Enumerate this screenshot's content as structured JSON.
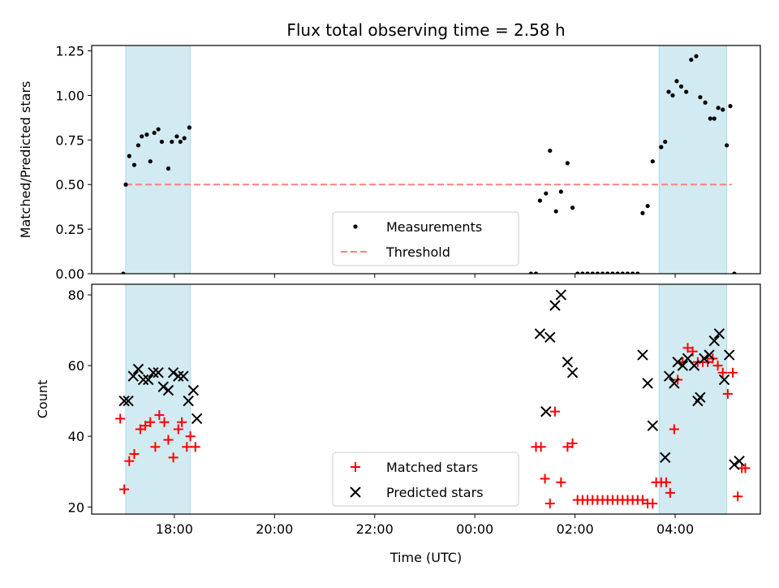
{
  "chart_data": {
    "title": "Flux total observing time = 2.58 h",
    "type": "scatter",
    "x_axis": {
      "label": "Time (UTC)",
      "unit": "hours since 00:00 UTC of first day",
      "ticks": [
        {
          "value": 18,
          "label": "18:00"
        },
        {
          "value": 20,
          "label": "20:00"
        },
        {
          "value": 22,
          "label": "22:00"
        },
        {
          "value": 24,
          "label": "00:00"
        },
        {
          "value": 26,
          "label": "02:00"
        },
        {
          "value": 28,
          "label": "04:00"
        }
      ],
      "range": [
        16.35,
        29.7
      ]
    },
    "shaded_intervals": [
      [
        17.03,
        18.32
      ],
      [
        27.68,
        29.03
      ]
    ],
    "shade_color": "#add8e6",
    "panels": [
      {
        "ylabel": "Matched/Predicted stars",
        "ylim": [
          0,
          1.28
        ],
        "yticks": [
          0,
          0.25,
          0.5,
          0.75,
          1.0,
          1.25
        ],
        "ytick_labels": [
          "0.00",
          "0.25",
          "0.50",
          "0.75",
          "1.00",
          "1.25"
        ],
        "threshold": {
          "name": "Threshold",
          "value": 0.5,
          "x_range": [
            17.03,
            29.13
          ],
          "color": "#ff7f7f"
        },
        "legend": {
          "position": "lower center",
          "entries": [
            "Measurements",
            "Threshold"
          ]
        },
        "series": [
          {
            "name": "Measurements",
            "marker": "dot",
            "color": "#000000",
            "points": [
              [
                16.98,
                0.0
              ],
              [
                17.03,
                0.5
              ],
              [
                17.1,
                0.66
              ],
              [
                17.2,
                0.61
              ],
              [
                17.28,
                0.72
              ],
              [
                17.35,
                0.77
              ],
              [
                17.45,
                0.78
              ],
              [
                17.52,
                0.63
              ],
              [
                17.6,
                0.79
              ],
              [
                17.68,
                0.81
              ],
              [
                17.75,
                0.74
              ],
              [
                17.88,
                0.59
              ],
              [
                17.95,
                0.74
              ],
              [
                18.05,
                0.77
              ],
              [
                18.12,
                0.74
              ],
              [
                18.2,
                0.76
              ],
              [
                18.3,
                0.82
              ],
              [
                25.12,
                0.0
              ],
              [
                25.22,
                0.0
              ],
              [
                25.3,
                0.41
              ],
              [
                25.42,
                0.45
              ],
              [
                25.5,
                0.69
              ],
              [
                25.62,
                0.35
              ],
              [
                25.72,
                0.46
              ],
              [
                25.85,
                0.62
              ],
              [
                25.95,
                0.37
              ],
              [
                26.05,
                0.0
              ],
              [
                26.15,
                0.0
              ],
              [
                26.25,
                0.0
              ],
              [
                26.35,
                0.0
              ],
              [
                26.45,
                0.0
              ],
              [
                26.55,
                0.0
              ],
              [
                26.65,
                0.0
              ],
              [
                26.75,
                0.0
              ],
              [
                26.85,
                0.0
              ],
              [
                26.95,
                0.0
              ],
              [
                27.05,
                0.0
              ],
              [
                27.15,
                0.0
              ],
              [
                27.25,
                0.0
              ],
              [
                27.35,
                0.34
              ],
              [
                27.45,
                0.38
              ],
              [
                27.55,
                0.63
              ],
              [
                27.72,
                0.71
              ],
              [
                27.8,
                0.74
              ],
              [
                27.87,
                1.02
              ],
              [
                27.95,
                1.0
              ],
              [
                28.03,
                1.08
              ],
              [
                28.12,
                1.05
              ],
              [
                28.22,
                1.02
              ],
              [
                28.32,
                1.2
              ],
              [
                28.42,
                1.22
              ],
              [
                28.5,
                0.99
              ],
              [
                28.6,
                0.96
              ],
              [
                28.7,
                0.87
              ],
              [
                28.78,
                0.87
              ],
              [
                28.86,
                0.93
              ],
              [
                28.95,
                0.92
              ],
              [
                29.03,
                0.72
              ],
              [
                29.1,
                0.94
              ],
              [
                29.18,
                0.0
              ]
            ]
          }
        ]
      },
      {
        "ylabel": "Count",
        "ylim": [
          18,
          83
        ],
        "yticks": [
          20,
          40,
          60,
          80
        ],
        "ytick_labels": [
          "20",
          "40",
          "60",
          "80"
        ],
        "legend": {
          "position": "lower center",
          "entries": [
            "Matched stars",
            "Predicted stars"
          ]
        },
        "series": [
          {
            "name": "Matched stars",
            "marker": "plus",
            "color": "#ff0000",
            "points": [
              [
                16.92,
                45
              ],
              [
                17.0,
                25
              ],
              [
                17.1,
                33
              ],
              [
                17.2,
                35
              ],
              [
                17.32,
                42
              ],
              [
                17.42,
                43
              ],
              [
                17.52,
                44
              ],
              [
                17.62,
                37
              ],
              [
                17.7,
                46
              ],
              [
                17.8,
                44
              ],
              [
                17.88,
                39
              ],
              [
                17.98,
                34
              ],
              [
                18.08,
                42
              ],
              [
                18.15,
                44
              ],
              [
                18.25,
                37
              ],
              [
                18.32,
                40
              ],
              [
                18.42,
                37
              ],
              [
                25.22,
                37
              ],
              [
                25.32,
                37
              ],
              [
                25.4,
                28
              ],
              [
                25.5,
                21
              ],
              [
                25.6,
                47
              ],
              [
                25.72,
                27
              ],
              [
                25.85,
                37
              ],
              [
                25.95,
                38
              ],
              [
                26.05,
                22
              ],
              [
                26.15,
                22
              ],
              [
                26.25,
                22
              ],
              [
                26.35,
                22
              ],
              [
                26.45,
                22
              ],
              [
                26.55,
                22
              ],
              [
                26.65,
                22
              ],
              [
                26.75,
                22
              ],
              [
                26.85,
                22
              ],
              [
                26.95,
                22
              ],
              [
                27.05,
                22
              ],
              [
                27.15,
                22
              ],
              [
                27.25,
                22
              ],
              [
                27.35,
                22
              ],
              [
                27.45,
                21
              ],
              [
                27.55,
                21
              ],
              [
                27.62,
                27
              ],
              [
                27.72,
                27
              ],
              [
                27.82,
                27
              ],
              [
                27.9,
                24
              ],
              [
                27.98,
                42
              ],
              [
                28.05,
                56
              ],
              [
                28.15,
                61
              ],
              [
                28.25,
                65
              ],
              [
                28.35,
                64
              ],
              [
                28.45,
                61
              ],
              [
                28.55,
                61
              ],
              [
                28.65,
                61
              ],
              [
                28.75,
                62
              ],
              [
                28.85,
                60
              ],
              [
                28.95,
                58
              ],
              [
                29.05,
                52
              ],
              [
                29.15,
                58
              ],
              [
                29.25,
                23
              ],
              [
                29.33,
                31
              ],
              [
                29.4,
                31
              ]
            ]
          },
          {
            "name": "Predicted stars",
            "marker": "x",
            "color": "#000000",
            "points": [
              [
                17.0,
                50
              ],
              [
                17.08,
                50
              ],
              [
                17.18,
                57
              ],
              [
                17.28,
                59
              ],
              [
                17.38,
                56
              ],
              [
                17.48,
                56
              ],
              [
                17.58,
                58
              ],
              [
                17.68,
                58
              ],
              [
                17.78,
                54
              ],
              [
                17.88,
                53
              ],
              [
                17.98,
                58
              ],
              [
                18.08,
                57
              ],
              [
                18.18,
                57
              ],
              [
                18.28,
                50
              ],
              [
                18.38,
                53
              ],
              [
                18.45,
                45
              ],
              [
                25.3,
                69
              ],
              [
                25.42,
                47
              ],
              [
                25.5,
                68
              ],
              [
                25.6,
                77
              ],
              [
                25.72,
                80
              ],
              [
                25.85,
                61
              ],
              [
                25.95,
                58
              ],
              [
                27.35,
                63
              ],
              [
                27.45,
                55
              ],
              [
                27.55,
                43
              ],
              [
                27.8,
                34
              ],
              [
                27.88,
                57
              ],
              [
                27.98,
                55
              ],
              [
                28.05,
                61
              ],
              [
                28.15,
                60
              ],
              [
                28.25,
                62
              ],
              [
                28.38,
                60
              ],
              [
                28.45,
                50
              ],
              [
                28.5,
                51
              ],
              [
                28.58,
                62
              ],
              [
                28.68,
                63
              ],
              [
                28.78,
                67
              ],
              [
                28.88,
                69
              ],
              [
                28.98,
                56
              ],
              [
                29.08,
                63
              ],
              [
                29.18,
                32
              ],
              [
                29.28,
                33
              ]
            ]
          }
        ]
      }
    ]
  }
}
